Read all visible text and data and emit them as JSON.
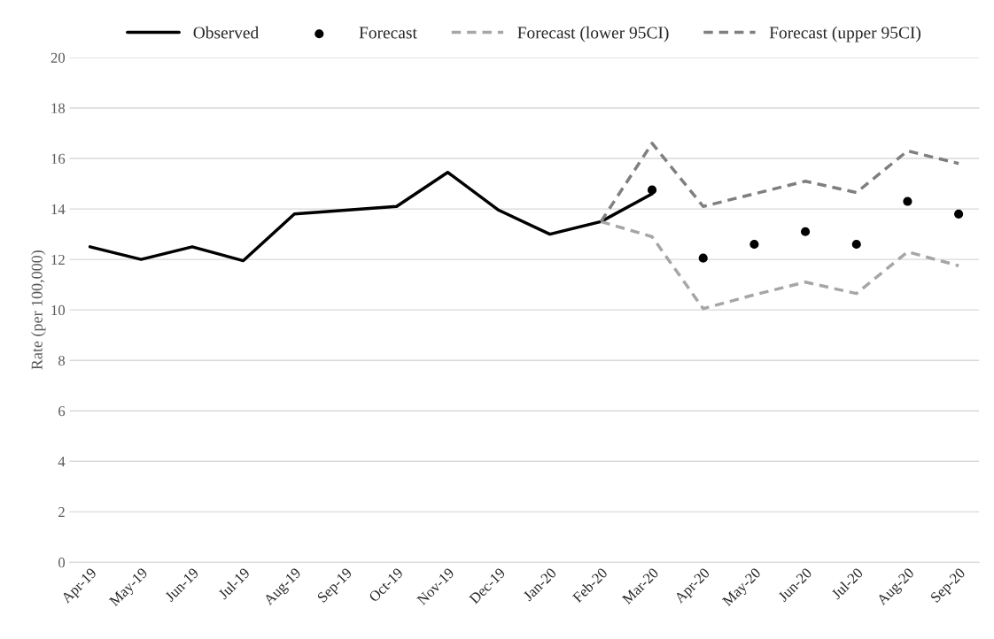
{
  "chart_data": {
    "type": "line",
    "ylabel": "Rate (per 100,000)",
    "categories": [
      "Apr-19",
      "May-19",
      "Jun-19",
      "Jul-19",
      "Aug-19",
      "Sep-19",
      "Oct-19",
      "Nov-19",
      "Dec-19",
      "Jan-20",
      "Feb-20",
      "Mar-20",
      "Apr-20",
      "May-20",
      "Jun-20",
      "Jul-20",
      "Aug-20",
      "Sep-20"
    ],
    "series": [
      {
        "name": "Observed",
        "color": "#000000",
        "line_style": "solid",
        "values": [
          12.5,
          12.0,
          12.5,
          11.95,
          13.8,
          13.95,
          14.1,
          15.45,
          13.95,
          13.0,
          13.5,
          14.6,
          null,
          null,
          null,
          null,
          null,
          null
        ]
      },
      {
        "name": "Forecast",
        "type": "scatter",
        "color": "#000000",
        "marker": "circle",
        "values": [
          null,
          null,
          null,
          null,
          null,
          null,
          null,
          null,
          null,
          null,
          null,
          14.75,
          12.05,
          12.6,
          13.1,
          12.6,
          14.3,
          13.8
        ]
      },
      {
        "name": "Forecast (lower 95CI)",
        "color": "#a6a6a6",
        "line_style": "dashed",
        "values": [
          null,
          null,
          null,
          null,
          null,
          null,
          null,
          null,
          null,
          null,
          13.5,
          12.9,
          10.05,
          10.6,
          11.1,
          10.65,
          12.3,
          11.75
        ]
      },
      {
        "name": "Forecast (upper 95CI)",
        "color": "#7f7f7f",
        "line_style": "dashed",
        "values": [
          null,
          null,
          null,
          null,
          null,
          null,
          null,
          null,
          null,
          null,
          13.5,
          16.6,
          14.1,
          14.6,
          15.1,
          14.65,
          16.3,
          15.8
        ]
      }
    ],
    "ylim": [
      0,
      20
    ],
    "yticks": [
      0,
      2,
      4,
      6,
      8,
      10,
      12,
      14,
      16,
      18,
      20
    ],
    "grid": "y",
    "legend": "top"
  }
}
